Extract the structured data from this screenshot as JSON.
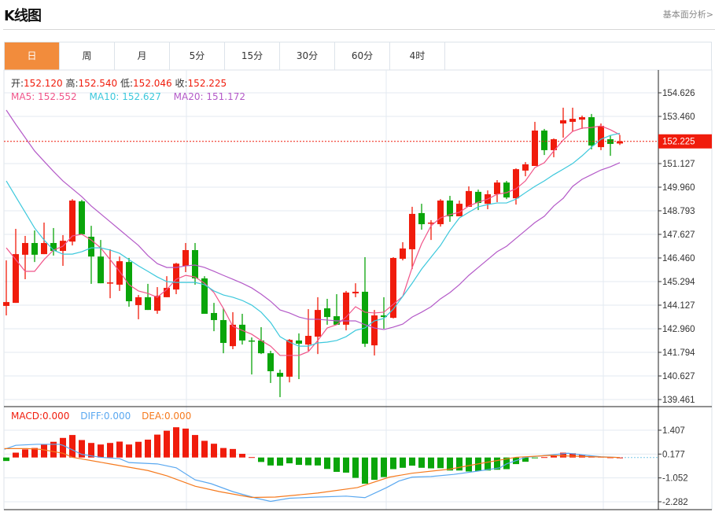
{
  "header": {
    "title": "K线图",
    "link": "基本面分析>"
  },
  "tabs": [
    {
      "label": "日",
      "active": true
    },
    {
      "label": "周"
    },
    {
      "label": "月"
    },
    {
      "label": "5分"
    },
    {
      "label": "15分"
    },
    {
      "label": "30分"
    },
    {
      "label": "60分"
    },
    {
      "label": "4时"
    }
  ],
  "ohlc_legend": {
    "open_label": "开:",
    "open": "152.120",
    "high_label": "高:",
    "high": "152.540",
    "low_label": "低:",
    "low": "152.046",
    "close_label": "收:",
    "close": "152.225"
  },
  "ma_legend": {
    "ma5": "MA5: 152.552",
    "ma10": "MA10: 152.627",
    "ma20": "MA20: 151.172"
  },
  "macd_legend": {
    "macd": "MACD:0.000",
    "diff": "DIFF:0.000",
    "dea": "DEA:0.000"
  },
  "colors": {
    "up": "#f01c0c",
    "down": "#0aa50a",
    "ma5": "#f0558a",
    "ma10": "#3cc8dc",
    "ma20": "#b45ac8",
    "diff": "#5aa8f0",
    "dea": "#f57a1e",
    "active_tab": "#f28c3c"
  },
  "chart_data": [
    {
      "type": "candlestick",
      "current_price": "152.225",
      "yaxis_ticks": [
        "154.626",
        "153.460",
        "151.127",
        "149.960",
        "148.793",
        "147.627",
        "146.460",
        "145.294",
        "144.127",
        "142.960",
        "141.794",
        "140.627",
        "139.461"
      ],
      "ylim": [
        139.461,
        154.626
      ],
      "candles": [
        [
          144.09,
          144.28,
          146.34,
          143.62
        ],
        [
          144.24,
          146.65,
          147.9,
          144.24
        ],
        [
          146.62,
          147.2,
          147.55,
          145.41
        ],
        [
          147.2,
          146.62,
          147.82,
          146.26
        ],
        [
          146.65,
          147.2,
          148.21,
          146.65
        ],
        [
          147.2,
          146.81,
          147.94,
          146.58
        ],
        [
          146.81,
          147.31,
          147.59,
          146.07
        ],
        [
          147.27,
          149.3,
          149.37,
          147.08
        ],
        [
          149.26,
          147.63,
          149.33,
          147.63
        ],
        [
          147.51,
          146.53,
          148.05,
          145.18
        ],
        [
          146.53,
          145.21,
          147.35,
          145.21
        ],
        [
          145.2,
          145.25,
          146.89,
          144.47
        ],
        [
          145.14,
          146.3,
          146.53,
          144.83
        ],
        [
          146.26,
          144.32,
          146.46,
          144.05
        ],
        [
          144.13,
          144.52,
          144.63,
          143.43
        ],
        [
          144.52,
          143.89,
          145.18,
          143.89
        ],
        [
          143.85,
          144.59,
          145.02,
          143.7
        ],
        [
          144.52,
          144.98,
          145.56,
          144.52
        ],
        [
          144.9,
          146.18,
          146.22,
          144.67
        ],
        [
          146.07,
          146.85,
          147.2,
          145.76
        ],
        [
          146.85,
          145.45,
          147.2,
          145.14
        ],
        [
          145.45,
          143.7,
          145.56,
          143.7
        ],
        [
          143.74,
          143.39,
          144.24,
          142.84
        ],
        [
          143.39,
          142.26,
          143.97,
          141.75
        ],
        [
          142.1,
          143.16,
          143.78,
          141.95
        ],
        [
          143.16,
          142.38,
          143.7,
          142.18
        ],
        [
          142.38,
          142.34,
          142.53,
          140.7
        ],
        [
          142.38,
          141.75,
          143.04,
          141.71
        ],
        [
          141.75,
          140.86,
          141.87,
          140.28
        ],
        [
          140.78,
          140.59,
          140.94,
          139.58
        ],
        [
          140.59,
          142.41,
          142.45,
          140.31
        ],
        [
          142.38,
          142.22,
          142.73,
          140.47
        ],
        [
          142.18,
          142.61,
          143.93,
          141.87
        ],
        [
          142.57,
          143.89,
          144.52,
          141.71
        ],
        [
          143.97,
          143.54,
          144.44,
          143.16
        ],
        [
          143.58,
          143.16,
          144.67,
          143.16
        ],
        [
          143.16,
          144.75,
          144.83,
          142.88
        ],
        [
          144.71,
          144.79,
          145.21,
          144.52
        ],
        [
          144.79,
          142.22,
          146.5,
          142.06
        ],
        [
          142.14,
          143.62,
          143.89,
          141.64
        ],
        [
          143.62,
          143.54,
          144.52,
          142.96
        ],
        [
          143.5,
          146.46,
          146.5,
          143.47
        ],
        [
          146.42,
          146.93,
          147.24,
          146.34
        ],
        [
          146.89,
          148.64,
          148.99,
          145.91
        ],
        [
          148.68,
          148.13,
          149.14,
          147.86
        ],
        [
          148.17,
          148.21,
          148.33,
          147.35
        ],
        [
          148.13,
          149.3,
          149.37,
          148.01
        ],
        [
          149.3,
          148.52,
          149.53,
          148.25
        ],
        [
          148.52,
          149.14,
          149.3,
          148.52
        ],
        [
          148.99,
          149.77,
          150.0,
          148.99
        ],
        [
          149.73,
          149.18,
          149.84,
          148.83
        ],
        [
          149.14,
          149.61,
          149.8,
          148.87
        ],
        [
          149.61,
          150.19,
          150.31,
          149.22
        ],
        [
          150.19,
          149.45,
          150.27,
          149.37
        ],
        [
          149.41,
          150.85,
          150.89,
          149.1
        ],
        [
          150.78,
          151.09,
          151.2,
          150.5
        ],
        [
          151.01,
          152.76,
          153.19,
          151.01
        ],
        [
          152.76,
          151.79,
          152.84,
          151.55
        ],
        [
          151.79,
          152.33,
          152.37,
          151.44
        ],
        [
          153.11,
          153.27,
          153.89,
          152.41
        ],
        [
          153.19,
          153.34,
          153.89,
          152.72
        ],
        [
          153.3,
          153.42,
          153.5,
          152.84
        ],
        [
          153.42,
          152.02,
          153.58,
          151.83
        ],
        [
          151.94,
          152.99,
          153.11,
          151.79
        ],
        [
          152.33,
          152.1,
          152.53,
          151.51
        ],
        [
          152.12,
          152.225,
          152.54,
          152.046
        ]
      ],
      "ma5": [
        146.96,
        146.38,
        145.8,
        145.8,
        146.38,
        146.85,
        147.04,
        147.55,
        147.63,
        147.35,
        146.96,
        146.38,
        145.8,
        145.14,
        144.83,
        144.71,
        144.52,
        144.9,
        145.41,
        145.6,
        145.52,
        145.21,
        144.75,
        143.97,
        143.08,
        142.88,
        142.69,
        142.38,
        142.1,
        141.64,
        141.64,
        141.64,
        141.83,
        142.38,
        143.0,
        143.16,
        143.54,
        144.05,
        143.78,
        143.74,
        143.78,
        144.17,
        144.56,
        145.99,
        147.16,
        148.05,
        148.44,
        148.6,
        148.72,
        149.03,
        149.22,
        149.37,
        149.61,
        149.69,
        149.88,
        150.27,
        150.93,
        151.17,
        151.75,
        152.29,
        152.72,
        152.88,
        152.91,
        152.99,
        152.8,
        152.552
      ],
      "ma10": [
        150.27,
        149.49,
        148.72,
        147.94,
        147.35,
        146.85,
        146.65,
        146.65,
        146.77,
        146.96,
        146.96,
        146.85,
        146.69,
        146.38,
        146.07,
        145.8,
        145.52,
        145.29,
        145.25,
        145.25,
        145.25,
        145.14,
        144.83,
        144.63,
        144.52,
        144.36,
        144.13,
        143.78,
        143.27,
        142.57,
        142.3,
        142.1,
        142.1,
        142.26,
        142.3,
        142.38,
        142.57,
        142.88,
        143.0,
        143.35,
        143.47,
        143.93,
        144.56,
        145.21,
        145.91,
        146.5,
        147.08,
        147.82,
        148.44,
        148.72,
        148.99,
        149.1,
        149.18,
        149.18,
        149.37,
        149.69,
        150.0,
        150.27,
        150.58,
        150.85,
        151.13,
        151.51,
        151.94,
        152.33,
        152.52,
        152.627
      ],
      "ma20": [
        153.77,
        153.07,
        152.41,
        151.75,
        151.24,
        150.74,
        150.27,
        149.88,
        149.49,
        149.03,
        148.64,
        148.25,
        147.86,
        147.47,
        147.08,
        146.58,
        146.18,
        145.99,
        145.99,
        146.07,
        146.11,
        145.99,
        145.8,
        145.6,
        145.41,
        145.21,
        144.98,
        144.67,
        144.32,
        143.89,
        143.74,
        143.54,
        143.43,
        143.43,
        143.39,
        143.35,
        143.35,
        143.35,
        143.16,
        143.0,
        142.92,
        143.04,
        143.19,
        143.54,
        143.78,
        144.05,
        144.44,
        144.75,
        145.14,
        145.6,
        145.99,
        146.38,
        146.77,
        147.04,
        147.43,
        147.82,
        148.21,
        148.52,
        149.03,
        149.41,
        150.0,
        150.35,
        150.58,
        150.81,
        150.97,
        151.172
      ]
    },
    {
      "type": "bar+line",
      "name": "MACD",
      "yaxis_ticks": [
        "1.407",
        "0.177",
        "-1.052",
        "-2.282"
      ],
      "ylim": [
        -2.282,
        1.407
      ],
      "macd": [
        -0.18,
        0.25,
        0.42,
        0.49,
        0.67,
        0.81,
        1.01,
        1.16,
        0.9,
        0.75,
        0.67,
        0.75,
        0.82,
        0.67,
        0.81,
        0.92,
        1.18,
        1.38,
        1.56,
        1.49,
        1.16,
        0.86,
        0.71,
        0.49,
        0.44,
        0.19,
        0.02,
        -0.23,
        -0.41,
        -0.42,
        -0.3,
        -0.38,
        -0.4,
        -0.41,
        -0.59,
        -0.74,
        -0.78,
        -1.05,
        -1.35,
        -1.15,
        -1.01,
        -0.6,
        -0.53,
        -0.42,
        -0.53,
        -0.56,
        -0.55,
        -0.67,
        -0.67,
        -0.72,
        -0.7,
        -0.67,
        -0.63,
        -0.6,
        -0.34,
        -0.22,
        -0.02,
        0.02,
        0.11,
        0.25,
        0.22,
        0.15,
        0.08,
        0.04,
        0.01,
        0.0
      ],
      "diff": [
        [
          -0.2,
          0.42
        ],
        [
          1,
          0.63
        ],
        [
          3.2,
          0.68
        ],
        [
          5.6,
          0.68
        ],
        [
          6,
          0.63
        ],
        [
          8,
          0.16
        ],
        [
          10,
          0.01
        ],
        [
          12,
          -0.06
        ],
        [
          13,
          -0.26
        ],
        [
          16,
          -0.33
        ],
        [
          18,
          -0.53
        ],
        [
          20,
          -1.15
        ],
        [
          21.7,
          -1.35
        ],
        [
          24,
          -1.76
        ],
        [
          26.5,
          -2.1
        ],
        [
          28,
          -2.26
        ],
        [
          30,
          -2.1
        ],
        [
          33,
          -2.04
        ],
        [
          36,
          -1.99
        ],
        [
          38,
          -2.07
        ],
        [
          40.3,
          -1.55
        ],
        [
          41.6,
          -1.21
        ],
        [
          43,
          -1.01
        ],
        [
          45,
          -0.98
        ],
        [
          47.4,
          -0.87
        ],
        [
          49.8,
          -0.71
        ],
        [
          52.3,
          -0.53
        ],
        [
          53,
          -0.33
        ],
        [
          55,
          0.01
        ],
        [
          56.6,
          0.08
        ],
        [
          59.5,
          0.22
        ],
        [
          61.5,
          0.11
        ],
        [
          63,
          0.04
        ],
        [
          65,
          0.0
        ]
      ],
      "dea": [
        [
          -0.2,
          0.46
        ],
        [
          2.2,
          0.46
        ],
        [
          3.7,
          0.42
        ],
        [
          6,
          0.22
        ],
        [
          7,
          0.01
        ],
        [
          11,
          -0.33
        ],
        [
          15,
          -0.67
        ],
        [
          17,
          -0.94
        ],
        [
          20,
          -1.48
        ],
        [
          22.6,
          -1.76
        ],
        [
          26,
          -2.06
        ],
        [
          28.5,
          -2.04
        ],
        [
          33,
          -1.83
        ],
        [
          37.2,
          -1.55
        ],
        [
          40.6,
          -1.01
        ],
        [
          43,
          -0.81
        ],
        [
          47,
          -0.6
        ],
        [
          50.3,
          -0.3
        ],
        [
          54,
          0.01
        ],
        [
          57.6,
          0.11
        ],
        [
          62,
          0.04
        ],
        [
          65,
          0.0
        ]
      ]
    }
  ]
}
